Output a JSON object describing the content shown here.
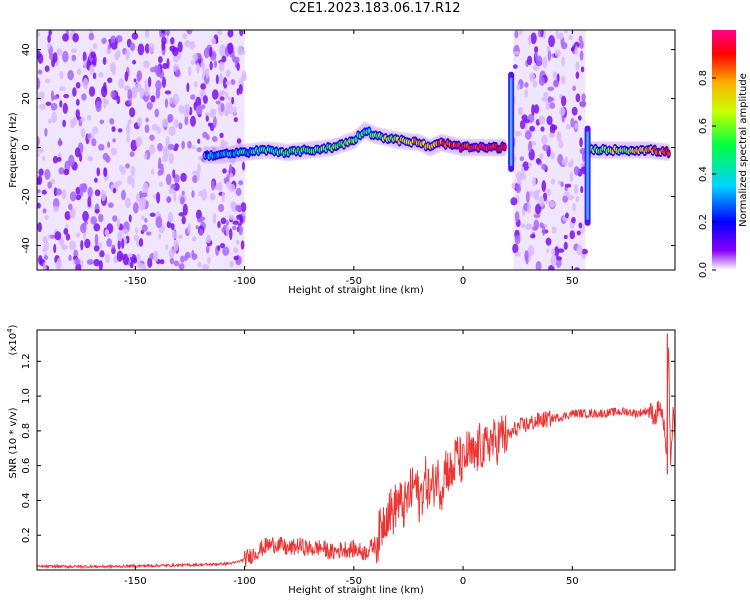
{
  "title": "C2E1.2023.183.06.17.R12",
  "chart_data": [
    {
      "type": "heatmap",
      "title": "C2E1.2023.183.06.17.R12",
      "xlabel": "Height of straight line (km)",
      "ylabel": "Frequency (Hz)",
      "xlim": [
        -195,
        97
      ],
      "ylim": [
        -50,
        48
      ],
      "xticks": [
        -150,
        -100,
        -50,
        0,
        50
      ],
      "yticks": [
        -40,
        -20,
        0,
        20,
        40
      ],
      "colorbar": {
        "label": "Normalized spectral amplitude",
        "range": [
          0.0,
          1.0
        ],
        "ticks": [
          "0.0",
          "0.2",
          "0.4",
          "0.6",
          "0.8"
        ],
        "colormap": [
          "#ffffff",
          "#8a00ff",
          "#0000ff",
          "#00d4ff",
          "#00ff40",
          "#c8ff00",
          "#ffb000",
          "#ff0000",
          "#ff0090"
        ]
      },
      "noise_regions": [
        {
          "x_from": -195,
          "x_to": -100
        },
        {
          "x_from": 23,
          "x_to": 56
        }
      ],
      "ridge": {
        "x": [
          -118,
          -110,
          -100,
          -90,
          -80,
          -70,
          -60,
          -50,
          -45,
          -40,
          -30,
          -20,
          -15,
          -10,
          -5,
          0,
          5,
          10,
          15,
          20,
          58,
          65,
          75,
          85,
          95
        ],
        "y": [
          -3,
          -3,
          -2,
          -1,
          -2,
          -1,
          0,
          3,
          7,
          5,
          3,
          2,
          0,
          2,
          1,
          0,
          0,
          0,
          0,
          0,
          -1,
          -1,
          -1,
          -1,
          -2
        ],
        "amplitude": [
          0.3,
          0.35,
          0.4,
          0.45,
          0.45,
          0.5,
          0.5,
          0.55,
          0.4,
          0.5,
          0.65,
          0.75,
          0.7,
          0.8,
          0.85,
          0.9,
          0.92,
          0.92,
          0.9,
          0.85,
          0.5,
          0.6,
          0.6,
          0.75,
          0.85
        ]
      },
      "vertical_streaks": [
        {
          "x": 22,
          "y_from": -10,
          "y_to": 31
        },
        {
          "x": 57,
          "y_from": -32,
          "y_to": 9
        }
      ]
    },
    {
      "type": "line",
      "xlabel": "Height of straight line (km)",
      "ylabel": "SNR (10 * v/v)",
      "y_multiplier": "(x10",
      "y_multiplier_exp": "4",
      "xlim": [
        -195,
        97
      ],
      "ylim": [
        0.0,
        1.38
      ],
      "xticks": [
        -150,
        -100,
        -50,
        0,
        50
      ],
      "yticks": [
        "0.2",
        "0.4",
        "0.6",
        "0.8",
        "1.0",
        "1.2"
      ],
      "color": "#ee3333",
      "series": [
        {
          "x": [
            -195,
            -180,
            -160,
            -140,
            -120,
            -110,
            -105,
            -100,
            -95,
            -90,
            -85,
            -80,
            -75,
            -70,
            -65,
            -60,
            -55,
            -50,
            -45,
            -40,
            -38,
            -36,
            -34,
            -32,
            -30,
            -27,
            -25,
            -22,
            -20,
            -17,
            -15,
            -12,
            -10,
            -8,
            -5,
            -3,
            0,
            2,
            5,
            8,
            10,
            12,
            15,
            18,
            20,
            25,
            30,
            35,
            40,
            45,
            50,
            55,
            60,
            65,
            70,
            75,
            80,
            85,
            88,
            90,
            92,
            93,
            94,
            95,
            96,
            97
          ],
          "y": [
            0.02,
            0.02,
            0.02,
            0.025,
            0.03,
            0.035,
            0.04,
            0.06,
            0.1,
            0.14,
            0.15,
            0.12,
            0.14,
            0.12,
            0.13,
            0.1,
            0.12,
            0.12,
            0.1,
            0.15,
            0.22,
            0.3,
            0.35,
            0.33,
            0.4,
            0.36,
            0.42,
            0.5,
            0.4,
            0.52,
            0.44,
            0.55,
            0.46,
            0.6,
            0.54,
            0.67,
            0.6,
            0.68,
            0.64,
            0.72,
            0.68,
            0.75,
            0.73,
            0.78,
            0.76,
            0.82,
            0.84,
            0.86,
            0.87,
            0.88,
            0.9,
            0.9,
            0.9,
            0.9,
            0.91,
            0.91,
            0.9,
            0.92,
            0.88,
            0.95,
            0.82,
            0.6,
            1.35,
            0.55,
            0.9,
            0.8
          ]
        }
      ]
    }
  ]
}
